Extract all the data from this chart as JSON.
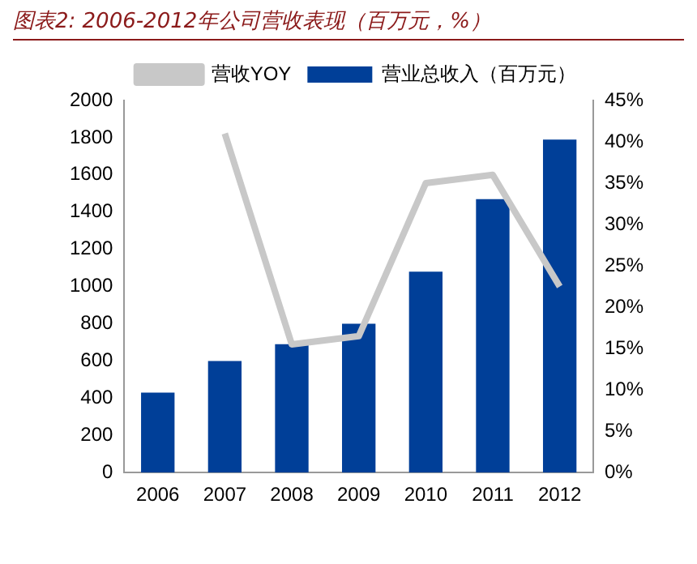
{
  "chart_data": {
    "type": "bar",
    "title": "图表2: 2006-2012年公司营收表现（百万元，%）",
    "categories": [
      "2006",
      "2007",
      "2008",
      "2009",
      "2010",
      "2011",
      "2012"
    ],
    "series": [
      {
        "name": "营业总收入（百万元）",
        "color": "#003f98",
        "values": [
          430,
          600,
          690,
          800,
          1080,
          1470,
          1790
        ]
      },
      {
        "name": "营收YOY",
        "type": "line",
        "axis": "y2",
        "color": "#c8c8c8",
        "values": [
          null,
          41,
          15.5,
          16.5,
          35,
          36,
          22.5
        ]
      }
    ],
    "ylim": [
      0,
      2000
    ],
    "yticks": [
      0,
      200,
      400,
      600,
      800,
      1000,
      1200,
      1400,
      1600,
      1800,
      2000
    ],
    "y2lim": [
      0,
      45
    ],
    "y2ticks": [
      {
        "value": 0,
        "label": "0%"
      },
      {
        "value": 5,
        "label": "5%"
      },
      {
        "value": 10,
        "label": "10%"
      },
      {
        "value": 15,
        "label": "15%"
      },
      {
        "value": 20,
        "label": "20%"
      },
      {
        "value": 25,
        "label": "25%"
      },
      {
        "value": 30,
        "label": "30%"
      },
      {
        "value": 35,
        "label": "35%"
      },
      {
        "value": 40,
        "label": "40%"
      },
      {
        "value": 45,
        "label": "45%"
      }
    ],
    "grid": false,
    "legend": "top",
    "marker": "none"
  }
}
